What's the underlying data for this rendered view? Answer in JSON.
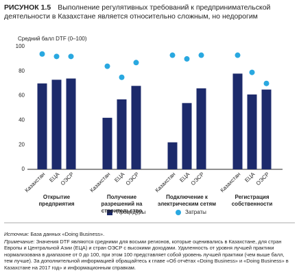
{
  "chart_data": {
    "type": "bar",
    "figure_label": "РИСУНОК 1.5",
    "title": "Выполнение регулятивных требований к предпринимательской деятельности в Казахстане является относительно сложным, но недорогим",
    "y_label": "Средний балл DTF (0–100)",
    "categories": [
      "Казахстан",
      "ЕЦА",
      "ОЭСР",
      "Казахстан",
      "ЕЦА",
      "ОЭСР",
      "Казахстан",
      "ЕЦА",
      "ОЭСР",
      "Казахстан",
      "ЕЦА",
      "ОЭСР"
    ],
    "groups": [
      "Открытие предприятия",
      "Получение разрешений на строительство",
      "Подключение к электрическим сетям",
      "Регистрация собственности"
    ],
    "series": [
      {
        "name": "Процедуры",
        "mark": "bar",
        "color": "#1c2a6b",
        "values": [
          70,
          73,
          74,
          42,
          57,
          68,
          22,
          54,
          66,
          78,
          61,
          65
        ]
      },
      {
        "name": "Затраты",
        "mark": "dot",
        "color": "#29a8e0",
        "values": [
          94,
          92,
          92,
          84,
          75,
          87,
          93,
          90,
          93,
          93,
          79,
          70
        ]
      }
    ],
    "ylim": [
      0,
      100
    ],
    "yticks": [
      0,
      20,
      40,
      60,
      80,
      100
    ],
    "grid": false
  },
  "notes": {
    "source_label": "Источник:",
    "source": "База данных «Doing Business».",
    "note_label": "Примечание:",
    "note": "Значения DTF являются средними для восьми регионов, которые оценивались в Казахстане, для стран Европы и Центральной Азии (ЕЦА) и стран ОЭСР с высокими доходами. Удаленность от уровня лучшей практики нормализована в диапазоне от 0 до 100, при этом 100 представляет собой уровень лучшей практики (чем выше балл, тем лучше). За дополнительной информацией обращайтесь к главе «Об отчётах «Doing Business» и «Doing Business» в Казахстане на 2017 год» и информационным справкам."
  }
}
